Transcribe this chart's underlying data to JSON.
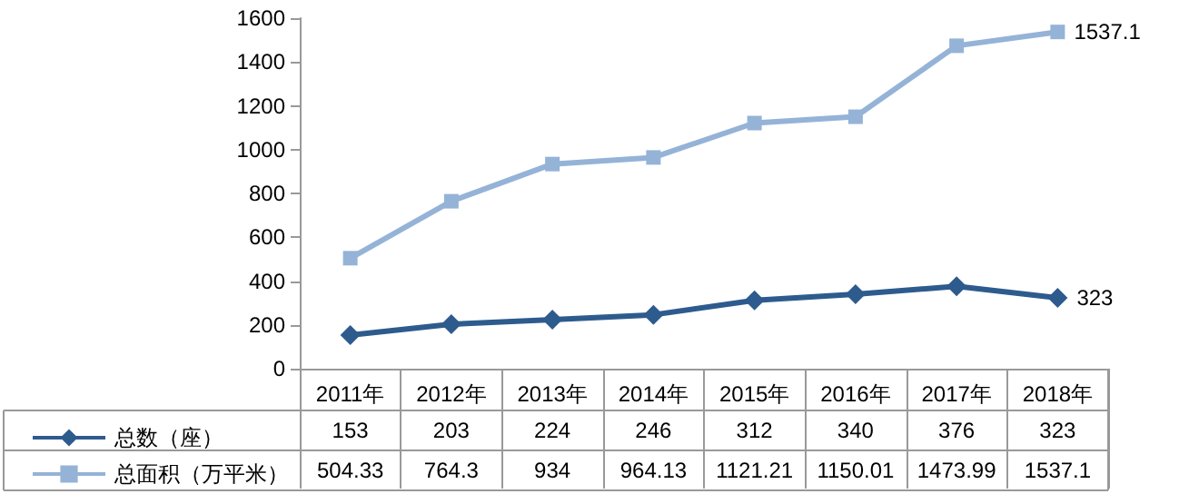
{
  "chart_data": {
    "type": "line",
    "categories": [
      "2011年",
      "2012年",
      "2013年",
      "2014年",
      "2015年",
      "2016年",
      "2017年",
      "2018年"
    ],
    "series": [
      {
        "name": "总数（座）",
        "color": "#2e5b8e",
        "marker": "diamond",
        "values": [
          153,
          203,
          224,
          246,
          312,
          340,
          376,
          323
        ],
        "value_labels": [
          "153",
          "203",
          "224",
          "246",
          "312",
          "340",
          "376",
          "323"
        ]
      },
      {
        "name": "总面积（万平米）",
        "color": "#95b3d7",
        "marker": "square",
        "values": [
          504.33,
          764.3,
          934,
          964.13,
          1121.21,
          1150.01,
          1473.99,
          1537.1
        ],
        "value_labels": [
          "504.33",
          "764.3",
          "934",
          "964.13",
          "1121.21",
          "1150.01",
          "1473.99",
          "1537.1"
        ]
      }
    ],
    "ylim": [
      0,
      1600
    ],
    "yticks": [
      0,
      200,
      400,
      600,
      800,
      1000,
      1200,
      1400,
      1600
    ],
    "grid": false,
    "legend": "bottom"
  }
}
